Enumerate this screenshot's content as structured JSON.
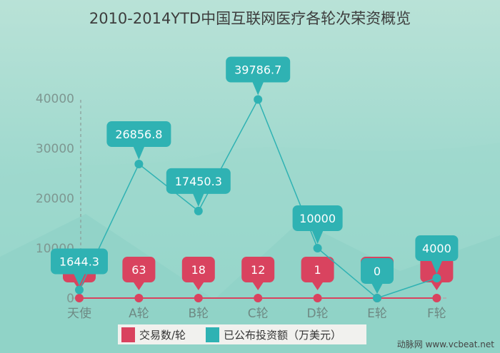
{
  "chart_data": {
    "type": "line",
    "title": "2010-2014YTD中国互联网医疗各轮次荣资概览",
    "categories": [
      "天使",
      "A轮",
      "B轮",
      "C轮",
      "D轮",
      "E轮",
      "F轮"
    ],
    "yticks": [
      0,
      10000,
      20000,
      30000,
      40000
    ],
    "ylim": [
      0,
      40000
    ],
    "xlabel": "",
    "ylabel": "",
    "grid": false,
    "legend_position": "bottom-center",
    "series": [
      {
        "name": "交易数/轮",
        "color": "#d9435f",
        "values": [
          null,
          63,
          18,
          12,
          1,
          null,
          null
        ],
        "labels": [
          "",
          "63",
          "18",
          "12",
          "1",
          "",
          ""
        ]
      },
      {
        "name": "已公布投资额（万美元）",
        "color": "#2fb2b3",
        "values": [
          1644.3,
          26856.8,
          17450.3,
          39786.7,
          10000,
          0,
          4000
        ],
        "labels": [
          "1644.3",
          "26856.8",
          "17450.3",
          "39786.7",
          "10000",
          "0",
          "4000"
        ]
      }
    ]
  },
  "watermark": "动脉网 www.vcbeat.net"
}
